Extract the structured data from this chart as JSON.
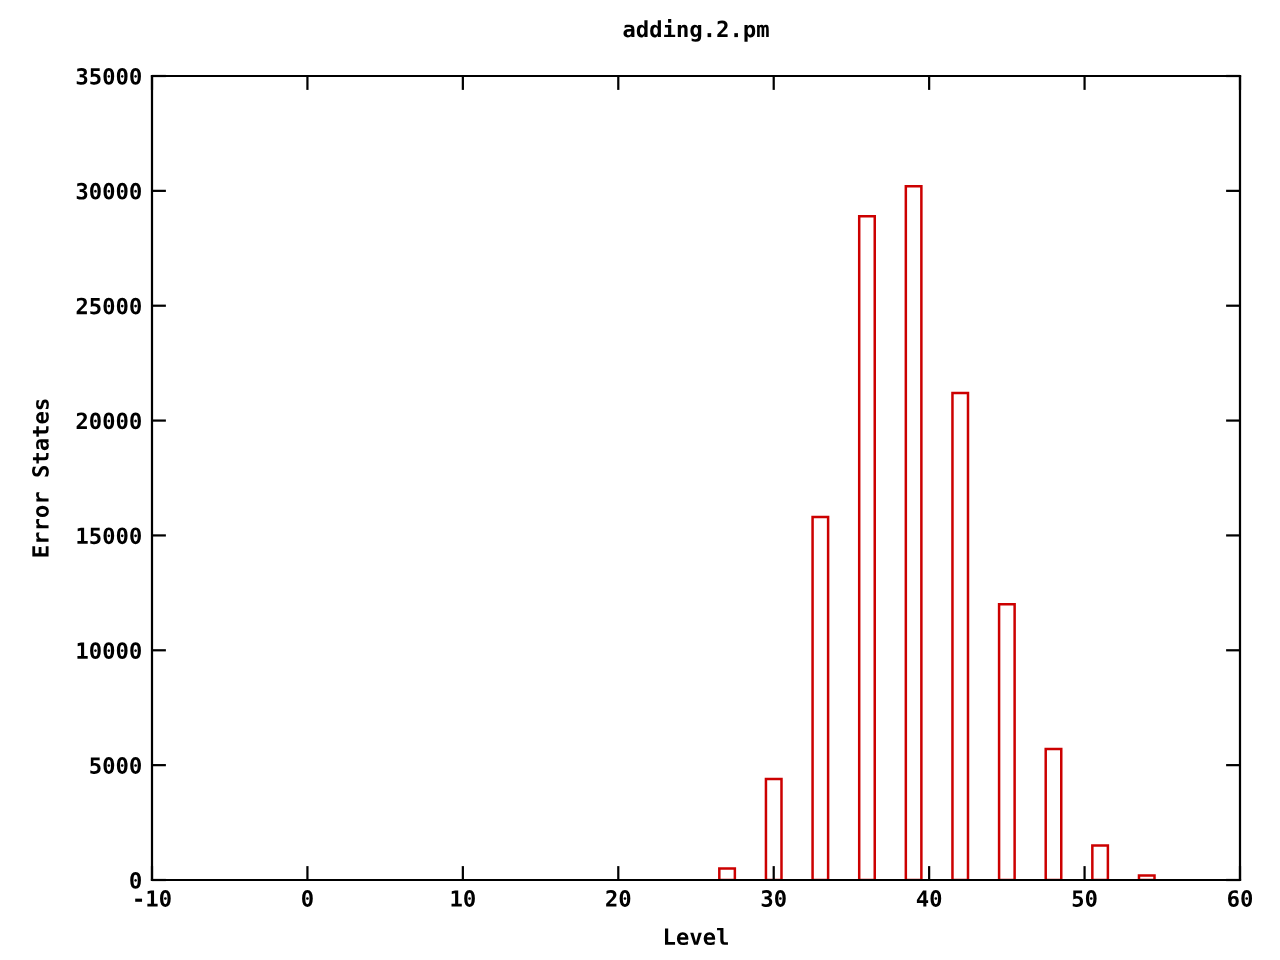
{
  "chart_data": {
    "type": "bar",
    "title": "adding.2.pm",
    "xlabel": "Level",
    "ylabel": "Error States",
    "x": [
      27,
      30,
      33,
      36,
      39,
      42,
      45,
      48,
      51,
      54
    ],
    "series": [
      {
        "color": "#cc0000",
        "values": [
          500,
          4400,
          15800,
          28900,
          30200,
          21200,
          12000,
          5700,
          1500,
          200
        ]
      }
    ],
    "xlim": [
      -10,
      60
    ],
    "xticks": [
      -10,
      0,
      10,
      20,
      30,
      40,
      50,
      60
    ],
    "ylim": [
      0,
      35000
    ],
    "yticks": [
      0,
      5000,
      10000,
      15000,
      20000,
      25000,
      30000,
      35000
    ],
    "grid": false
  }
}
